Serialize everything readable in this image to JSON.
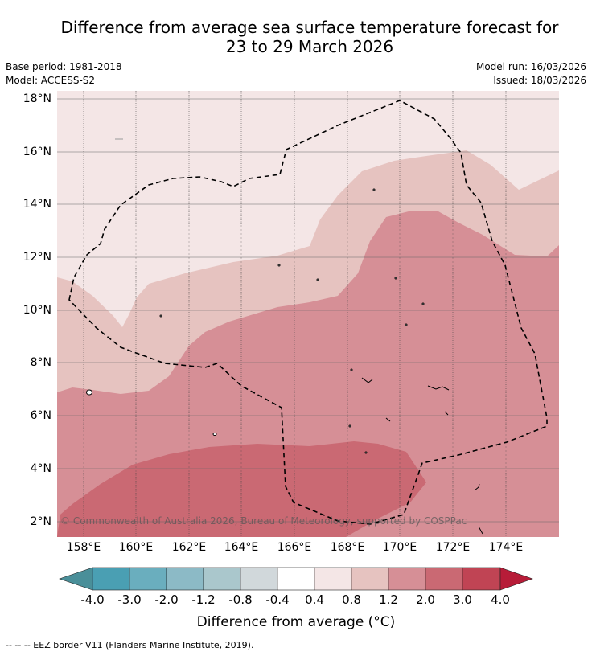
{
  "title_line1": "Difference from average sea surface temperature forecast for",
  "title_line2": "23 to 29 March 2026",
  "base_period": "Base period: 1981-2018",
  "model": "Model: ACCESS-S2",
  "model_run": "Model run: 16/03/2026",
  "issued": "Issued: 18/03/2026",
  "lat_labels": [
    "18°N",
    "16°N",
    "14°N",
    "12°N",
    "10°N",
    "8°N",
    "6°N",
    "4°N",
    "2°N"
  ],
  "lon_labels": [
    "158°E",
    "160°E",
    "162°E",
    "164°E",
    "166°E",
    "168°E",
    "170°E",
    "172°E",
    "174°E"
  ],
  "copyright": "© Commonwealth of Australia 2026, Bureau of Meteorology, supported by COSPPac",
  "colorbar": {
    "ticks": [
      "-4.0",
      "-3.0",
      "-2.0",
      "-1.2",
      "-0.8",
      "-0.4",
      "0.4",
      "0.8",
      "1.2",
      "2.0",
      "3.0",
      "4.0"
    ],
    "colors": [
      "#4a8f99",
      "#4a9fb3",
      "#6aaebe",
      "#8cbac6",
      "#aac7cc",
      "#d1d8db",
      "#ffffff",
      "#f4e6e6",
      "#e6c3c0",
      "#d68f96",
      "#ca6973",
      "#c04454",
      "#b71c38"
    ],
    "label": "Difference from average (°C)"
  },
  "footnote": "--  --  -- EEZ border V11 (Flanders Marine Institute, 2019)."
}
